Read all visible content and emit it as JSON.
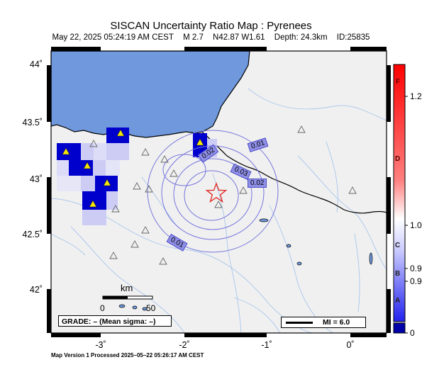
{
  "header": {
    "title": "SISCAN Uncertainty Ratio Map : Pyrenees",
    "date": "May 22, 2025 05:24:19 AM CEST",
    "magnitude": "M 2.7",
    "location": "N42.87 W1.61",
    "depth": "Depth: 24.3km",
    "event_id": "ID:25835"
  },
  "axes": {
    "lat_labels": [
      "44˚",
      "43.5˚",
      "43˚",
      "42.5˚",
      "42˚"
    ],
    "lon_labels": [
      "-3˚",
      "-2˚",
      "-1˚",
      "0˚"
    ]
  },
  "contours": [
    "0.01",
    "0.02",
    "0.03",
    "0.02",
    "0.01"
  ],
  "scale_bar": {
    "unit": "km",
    "min": "0",
    "max": "50"
  },
  "grade_box": "GRADE: – (Mean sigma: –)",
  "mi_legend": "MI = 6.0",
  "colorbar": {
    "letters": [
      "F",
      "D",
      "C",
      "B",
      "A"
    ],
    "values": [
      "1.2",
      "1.0",
      "0.9",
      "0.9",
      "0"
    ]
  },
  "footer": "Map Version 1 Processed 2025–05–22 05:26:17 AM CEST",
  "colors": {
    "sea": "#6f98dd",
    "land": "#f0f0f0",
    "contour": "#7575dc",
    "epicenter": "#e0302a",
    "cell_strong": "#0000cc",
    "cell_light": "#ccccf5"
  }
}
